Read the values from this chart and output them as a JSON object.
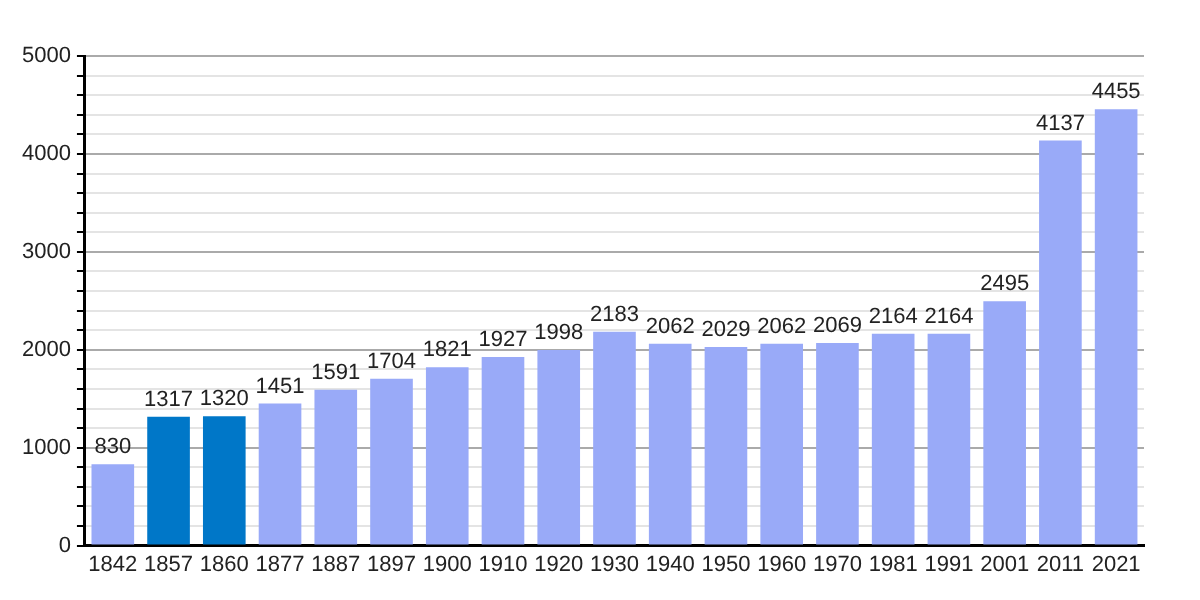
{
  "chart_data": {
    "type": "bar",
    "categories": [
      "1842",
      "1857",
      "1860",
      "1877",
      "1887",
      "1897",
      "1900",
      "1910",
      "1920",
      "1930",
      "1940",
      "1950",
      "1960",
      "1970",
      "1981",
      "1991",
      "2001",
      "2011",
      "2021"
    ],
    "values": [
      830,
      1317,
      1320,
      1451,
      1591,
      1704,
      1821,
      1927,
      1998,
      2183,
      2062,
      2029,
      2062,
      2069,
      2164,
      2164,
      2495,
      4137,
      4455
    ],
    "colors": [
      "#99aaf8",
      "#0077c8",
      "#0077c8",
      "#99aaf8",
      "#99aaf8",
      "#99aaf8",
      "#99aaf8",
      "#99aaf8",
      "#99aaf8",
      "#99aaf8",
      "#99aaf8",
      "#99aaf8",
      "#99aaf8",
      "#99aaf8",
      "#99aaf8",
      "#99aaf8",
      "#99aaf8",
      "#99aaf8",
      "#99aaf8"
    ],
    "ylim": [
      0,
      5000
    ],
    "yticks": [
      0,
      {
        "value": 200,
        "label": null
      },
      {
        "value": 400,
        "label": null
      },
      {
        "value": 600,
        "label": null
      },
      {
        "value": 800,
        "label": null
      },
      1000,
      {
        "value": 1200,
        "label": null
      },
      {
        "value": 1400,
        "label": null
      },
      {
        "value": 1600,
        "label": null
      },
      {
        "value": 1800,
        "label": null
      },
      2000,
      {
        "value": 2200,
        "label": null
      },
      {
        "value": 2400,
        "label": null
      },
      {
        "value": 2600,
        "label": null
      },
      {
        "value": 2800,
        "label": null
      },
      3000,
      {
        "value": 3200,
        "label": null
      },
      {
        "value": 3400,
        "label": null
      },
      {
        "value": 3600,
        "label": null
      },
      {
        "value": 3800,
        "label": null
      },
      4000,
      {
        "value": 4200,
        "label": null
      },
      {
        "value": 4400,
        "label": null
      },
      {
        "value": 4600,
        "label": null
      },
      {
        "value": 4800,
        "label": null
      },
      5000
    ],
    "grid": "y",
    "data_labels": true,
    "legend": false
  }
}
